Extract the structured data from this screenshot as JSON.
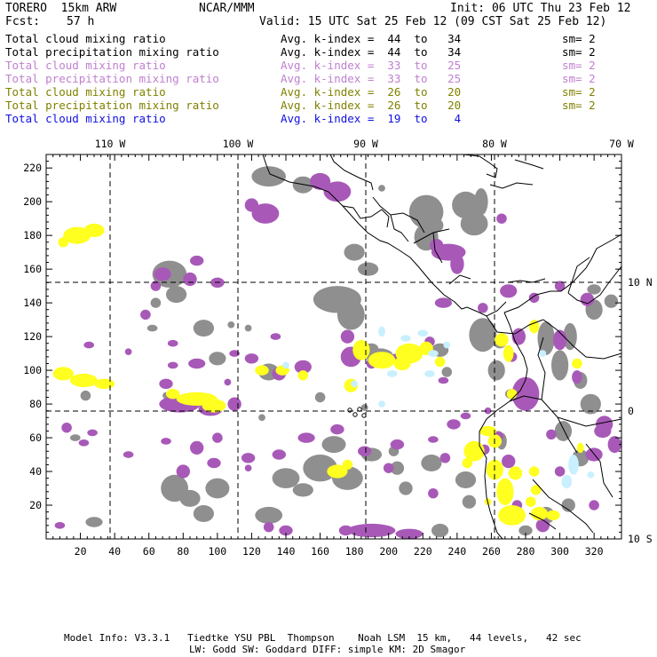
{
  "header": {
    "model": "TORERO  15km ARW",
    "org": "NCAR/MMM",
    "init": "Init: 06 UTC Thu 23 Feb 12",
    "fcst_label": "Fcst:",
    "fcst_value": "57 h",
    "valid": "Valid: 15 UTC Sat 25 Feb 12 (09 CST Sat 25 Feb 12)"
  },
  "legend": [
    {
      "field": "Total cloud mixing ratio",
      "kindex": "Avg. k-index =  44  to   34",
      "sm": "sm= 2",
      "color": "#000000"
    },
    {
      "field": "Total precipitation mixing ratio",
      "kindex": "Avg. k-index =  44  to   34",
      "sm": "sm= 2",
      "color": "#000000"
    },
    {
      "field": "Total cloud mixing ratio",
      "kindex": "Avg. k-index =  33  to   25",
      "sm": "sm= 2",
      "color": "#c080d0"
    },
    {
      "field": "Total precipitation mixing ratio",
      "kindex": "Avg. k-index =  33  to   25",
      "sm": "sm= 2",
      "color": "#c080d0"
    },
    {
      "field": "Total cloud mixing ratio",
      "kindex": "Avg. k-index =  26  to   20",
      "sm": "sm= 2",
      "color": "#808000"
    },
    {
      "field": "Total precipitation mixing ratio",
      "kindex": "Avg. k-index =  26  to   20",
      "sm": "sm= 2",
      "color": "#808000"
    },
    {
      "field": "Total cloud mixing ratio",
      "kindex": "Avg. k-index =  19  to    4",
      "sm": "",
      "color": "#1010e0"
    }
  ],
  "map": {
    "longitude_labels": [
      "110 W",
      "100 W",
      "90 W",
      "80 W",
      "70 W"
    ],
    "latitude_labels": [
      "10 N",
      "0",
      "10 S"
    ],
    "y_ticks": [
      "220",
      "200",
      "180",
      "160",
      "140",
      "120",
      "100",
      "80",
      "60",
      "40",
      "20"
    ],
    "x_ticks": [
      "20",
      "40",
      "60",
      "80",
      "100",
      "120",
      "140",
      "160",
      "180",
      "200",
      "220",
      "240",
      "260",
      "280",
      "300",
      "320"
    ],
    "colors": {
      "gray": "#8f8f8f",
      "purple": "#a859b8",
      "yellow": "#ffff20",
      "light_blue": "#c8f0ff"
    }
  },
  "footer": {
    "line1": "Model Info: V3.3.1   Tiedtke YSU PBL  Thompson    Noah LSM  15 km,   44 levels,   42 sec",
    "line2": "LW: Godd SW: Goddard DIFF: simple KM: 2D Smagor"
  }
}
